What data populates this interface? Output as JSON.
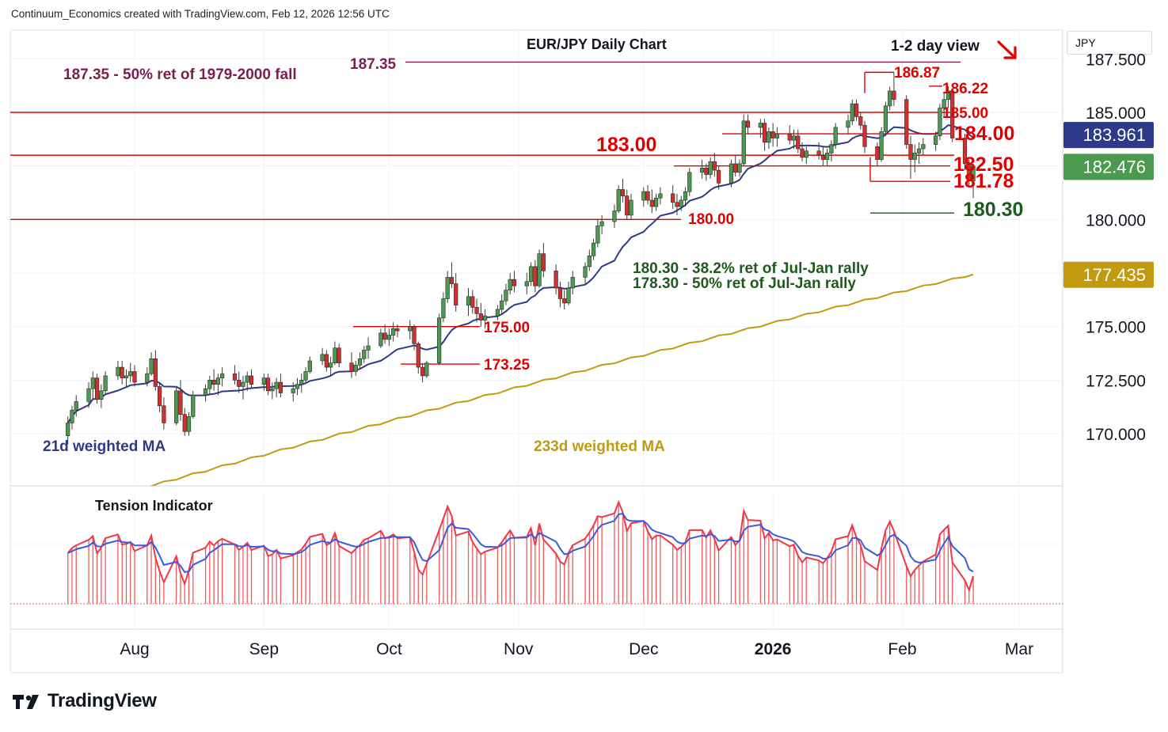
{
  "header": {
    "credit": "Continuum_Economics created with TradingView.com, Feb 12, 2026 12:56 UTC"
  },
  "branding": {
    "logo_text": "TradingView"
  },
  "currency_label": "JPY",
  "chart_data": {
    "type": "candlestick",
    "title": "EUR/JPY Daily Chart",
    "view_text": "1-2 day view",
    "view_arrow": "down-right arrow",
    "y_ticks": [
      {
        "value": 187.5,
        "label": "187.500"
      },
      {
        "value": 185.0,
        "label": "185.000"
      },
      {
        "value": 180.0,
        "label": "180.000"
      },
      {
        "value": 175.0,
        "label": "175.000"
      },
      {
        "value": 172.5,
        "label": "172.500"
      },
      {
        "value": 170.0,
        "label": "170.000"
      }
    ],
    "x_ticks": [
      {
        "date": "2025-08-01",
        "label": "Aug",
        "bold": false
      },
      {
        "date": "2025-09-01",
        "label": "Sep",
        "bold": false
      },
      {
        "date": "2025-10-01",
        "label": "Oct",
        "bold": false
      },
      {
        "date": "2025-11-01",
        "label": "Nov",
        "bold": false
      },
      {
        "date": "2025-12-01",
        "label": "Dec",
        "bold": false
      },
      {
        "date": "2026-01-01",
        "label": "2026",
        "bold": true
      },
      {
        "date": "2026-02-01",
        "label": "Feb",
        "bold": false
      },
      {
        "date": "2026-03-01",
        "label": "Mar",
        "bold": false
      }
    ],
    "price_badges": [
      {
        "value": 183.961,
        "label": "183.961",
        "color": "#2e3a87"
      },
      {
        "value": 182.476,
        "label": "182.476",
        "color": "#4c9a4f"
      },
      {
        "value": 177.435,
        "label": "177.435",
        "color": "#c29a10"
      }
    ],
    "levels": [
      {
        "value": 187.35,
        "label": "187.35",
        "note": "187.35 - 50% ret of 1979-2000 fall",
        "color": "#7a1f4e"
      },
      {
        "value": 185.0,
        "label": "185.00",
        "color": "#e00000"
      },
      {
        "value": 184.0,
        "label": "184.00",
        "color": "#e00000"
      },
      {
        "value": 183.0,
        "label": "183.00",
        "color": "#e00000"
      },
      {
        "value": 182.5,
        "label": "182.50",
        "color": "#e00000"
      },
      {
        "value": 181.78,
        "label": "181.78",
        "color": "#e00000"
      },
      {
        "value": 180.3,
        "label": "180.30",
        "color": "#1e5a1e"
      },
      {
        "value": 180.0,
        "label": "180.00",
        "color": "#e00000"
      },
      {
        "value": 175.0,
        "label": "175.00",
        "color": "#e00000"
      },
      {
        "value": 173.25,
        "label": "173.25",
        "color": "#e00000"
      },
      {
        "value": 186.87,
        "label": "186.87",
        "color": "#e00000"
      },
      {
        "value": 186.22,
        "label": "186.22",
        "color": "#e00000"
      }
    ],
    "notes": [
      "180.30 - 38.2% ret of Jul-Jan rally",
      "178.30 - 50% ret of Jul-Jan rally"
    ],
    "series": [
      {
        "name": "21d weighted MA",
        "color": "#2e3a87"
      },
      {
        "name": "233d weighted MA",
        "color": "#c29a10"
      }
    ],
    "indicator": {
      "name": "Tension Indicator"
    },
    "colors": {
      "up": "#4c9a4f",
      "down": "#d32f2f",
      "wick": "#3b3b3b"
    },
    "ohlc": [
      [
        "2025-07-16",
        169.9,
        170.8,
        169.5,
        170.5
      ],
      [
        "2025-07-17",
        170.5,
        171.3,
        170.2,
        171.1
      ],
      [
        "2025-07-18",
        171.1,
        171.8,
        170.8,
        171.5
      ],
      [
        "2025-07-21",
        171.5,
        172.4,
        171.2,
        172.1
      ],
      [
        "2025-07-22",
        172.1,
        172.9,
        171.6,
        172.6
      ],
      [
        "2025-07-23",
        172.6,
        172.8,
        171.4,
        171.6
      ],
      [
        "2025-07-24",
        171.6,
        172.3,
        171.2,
        172.0
      ],
      [
        "2025-07-25",
        172.0,
        172.9,
        171.8,
        172.7
      ],
      [
        "2025-07-28",
        172.7,
        173.4,
        172.5,
        173.1
      ],
      [
        "2025-07-29",
        173.1,
        173.4,
        172.3,
        172.6
      ],
      [
        "2025-07-30",
        172.6,
        173.0,
        172.2,
        172.7
      ],
      [
        "2025-07-31",
        172.7,
        173.3,
        172.4,
        172.9
      ],
      [
        "2025-08-01",
        172.9,
        173.2,
        172.2,
        172.4
      ],
      [
        "2025-08-04",
        172.4,
        173.1,
        172.2,
        172.8
      ],
      [
        "2025-08-05",
        172.8,
        173.8,
        172.7,
        173.5
      ],
      [
        "2025-08-06",
        173.5,
        173.9,
        172.0,
        172.2
      ],
      [
        "2025-08-07",
        172.2,
        172.4,
        171.0,
        171.3
      ],
      [
        "2025-08-08",
        171.3,
        171.7,
        170.2,
        170.5
      ],
      [
        "2025-08-11",
        170.5,
        172.2,
        170.4,
        172.0
      ],
      [
        "2025-08-12",
        172.0,
        172.5,
        170.6,
        170.9
      ],
      [
        "2025-08-13",
        170.9,
        171.2,
        169.9,
        170.1
      ],
      [
        "2025-08-14",
        170.1,
        171.0,
        169.9,
        170.8
      ],
      [
        "2025-08-15",
        170.8,
        172.0,
        170.7,
        171.8
      ],
      [
        "2025-08-18",
        171.8,
        172.3,
        171.5,
        172.1
      ],
      [
        "2025-08-19",
        172.1,
        172.7,
        171.8,
        172.5
      ],
      [
        "2025-08-20",
        172.5,
        173.0,
        172.0,
        172.3
      ],
      [
        "2025-08-21",
        172.3,
        172.8,
        171.8,
        172.6
      ],
      [
        "2025-08-22",
        172.6,
        173.1,
        172.2,
        172.8
      ],
      [
        "2025-08-25",
        172.8,
        173.2,
        172.3,
        172.5
      ],
      [
        "2025-08-26",
        172.5,
        172.9,
        171.9,
        172.2
      ],
      [
        "2025-08-27",
        172.2,
        172.7,
        171.6,
        172.4
      ],
      [
        "2025-08-28",
        172.4,
        172.9,
        172.0,
        172.7
      ],
      [
        "2025-08-29",
        172.7,
        173.0,
        172.1,
        172.3
      ],
      [
        "2025-09-01",
        172.3,
        172.8,
        172.0,
        172.6
      ],
      [
        "2025-09-02",
        172.6,
        172.8,
        171.8,
        172.0
      ],
      [
        "2025-09-03",
        172.0,
        172.4,
        171.6,
        172.1
      ],
      [
        "2025-09-04",
        172.1,
        172.6,
        171.7,
        172.4
      ],
      [
        "2025-09-05",
        172.4,
        172.8,
        171.7,
        171.9
      ],
      [
        "2025-09-08",
        171.9,
        172.4,
        171.5,
        172.1
      ],
      [
        "2025-09-09",
        172.1,
        172.6,
        171.8,
        172.3
      ],
      [
        "2025-09-10",
        172.3,
        172.8,
        171.9,
        172.5
      ],
      [
        "2025-09-11",
        172.5,
        173.1,
        172.4,
        172.9
      ],
      [
        "2025-09-12",
        172.9,
        173.6,
        172.8,
        173.4
      ],
      [
        "2025-09-15",
        173.4,
        174.0,
        173.2,
        173.7
      ],
      [
        "2025-09-16",
        173.7,
        173.9,
        172.9,
        173.1
      ],
      [
        "2025-09-17",
        173.1,
        173.6,
        172.7,
        173.3
      ],
      [
        "2025-09-18",
        173.3,
        174.3,
        173.2,
        174.0
      ],
      [
        "2025-09-19",
        174.0,
        174.2,
        173.1,
        173.3
      ],
      [
        "2025-09-22",
        173.3,
        173.8,
        172.6,
        172.9
      ],
      [
        "2025-09-23",
        172.9,
        173.4,
        172.7,
        173.2
      ],
      [
        "2025-09-24",
        173.2,
        173.8,
        173.0,
        173.5
      ],
      [
        "2025-09-25",
        173.5,
        174.1,
        173.3,
        173.9
      ],
      [
        "2025-09-26",
        173.9,
        174.5,
        173.5,
        174.1
      ],
      [
        "2025-09-29",
        174.1,
        174.9,
        174.0,
        174.7
      ],
      [
        "2025-09-30",
        174.7,
        175.1,
        174.2,
        174.4
      ],
      [
        "2025-10-01",
        174.4,
        174.9,
        174.1,
        174.6
      ],
      [
        "2025-10-02",
        174.6,
        175.2,
        174.3,
        174.9
      ],
      [
        "2025-10-03",
        174.9,
        175.1,
        174.5,
        174.8
      ],
      [
        "2025-10-06",
        174.8,
        175.3,
        174.4,
        175.0
      ],
      [
        "2025-10-07",
        175.0,
        175.1,
        173.9,
        174.2
      ],
      [
        "2025-10-08",
        174.2,
        174.3,
        172.8,
        173.1
      ],
      [
        "2025-10-09",
        173.1,
        173.3,
        172.4,
        172.7
      ],
      [
        "2025-10-10",
        172.7,
        173.4,
        172.6,
        173.3
      ],
      [
        "2025-10-13",
        173.3,
        175.6,
        173.2,
        175.4
      ],
      [
        "2025-10-14",
        175.4,
        176.6,
        175.2,
        176.3
      ],
      [
        "2025-10-15",
        176.3,
        177.6,
        176.1,
        177.3
      ],
      [
        "2025-10-16",
        177.3,
        178.0,
        176.8,
        177.0
      ],
      [
        "2025-10-17",
        177.0,
        177.5,
        175.7,
        176.0
      ],
      [
        "2025-10-20",
        176.0,
        176.8,
        175.5,
        176.4
      ],
      [
        "2025-10-21",
        176.4,
        176.7,
        175.6,
        175.9
      ],
      [
        "2025-10-22",
        175.9,
        176.3,
        175.2,
        175.6
      ],
      [
        "2025-10-23",
        175.6,
        176.1,
        175.0,
        175.3
      ],
      [
        "2025-10-24",
        175.3,
        175.8,
        174.9,
        175.5
      ],
      [
        "2025-10-27",
        175.5,
        176.0,
        175.3,
        175.8
      ],
      [
        "2025-10-28",
        175.8,
        176.5,
        175.6,
        176.2
      ],
      [
        "2025-10-29",
        176.2,
        177.0,
        176.0,
        176.7
      ],
      [
        "2025-10-30",
        176.7,
        177.5,
        176.5,
        177.2
      ],
      [
        "2025-10-31",
        177.2,
        177.6,
        176.6,
        176.9
      ],
      [
        "2025-11-03",
        176.9,
        177.5,
        176.5,
        177.1
      ],
      [
        "2025-11-04",
        177.1,
        178.0,
        176.9,
        177.8
      ],
      [
        "2025-11-05",
        177.8,
        178.1,
        176.6,
        176.9
      ],
      [
        "2025-11-06",
        176.9,
        178.6,
        176.8,
        178.4
      ],
      [
        "2025-11-07",
        178.4,
        178.9,
        177.3,
        177.6
      ],
      [
        "2025-11-10",
        177.6,
        177.9,
        176.5,
        176.8
      ],
      [
        "2025-11-11",
        176.8,
        177.1,
        175.9,
        176.3
      ],
      [
        "2025-11-12",
        176.3,
        176.7,
        175.8,
        176.1
      ],
      [
        "2025-11-13",
        176.1,
        177.1,
        176.0,
        176.8
      ],
      [
        "2025-11-14",
        176.8,
        177.6,
        176.5,
        177.3
      ],
      [
        "2025-11-17",
        177.3,
        178.0,
        177.0,
        177.8
      ],
      [
        "2025-11-18",
        177.8,
        178.6,
        177.6,
        178.3
      ],
      [
        "2025-11-19",
        178.3,
        179.1,
        178.1,
        178.9
      ],
      [
        "2025-11-20",
        178.9,
        180.0,
        178.7,
        179.7
      ],
      [
        "2025-11-21",
        179.7,
        180.2,
        179.3,
        179.9
      ],
      [
        "2025-11-24",
        179.9,
        180.7,
        179.6,
        180.4
      ],
      [
        "2025-11-25",
        180.4,
        181.6,
        180.3,
        181.4
      ],
      [
        "2025-11-26",
        181.4,
        181.9,
        180.8,
        181.1
      ],
      [
        "2025-11-27",
        181.1,
        181.4,
        180.0,
        180.2
      ],
      [
        "2025-11-28",
        180.2,
        181.2,
        180.0,
        180.9
      ],
      [
        "2025-12-01",
        180.9,
        181.5,
        180.6,
        181.3
      ],
      [
        "2025-12-02",
        181.3,
        181.6,
        180.7,
        180.9
      ],
      [
        "2025-12-03",
        180.9,
        181.4,
        180.3,
        180.6
      ],
      [
        "2025-12-04",
        180.6,
        181.2,
        180.4,
        181.0
      ],
      [
        "2025-12-05",
        181.0,
        181.5,
        180.7,
        181.2
      ],
      [
        "2025-12-08",
        181.2,
        181.6,
        180.5,
        180.8
      ],
      [
        "2025-12-09",
        180.8,
        181.2,
        180.2,
        180.6
      ],
      [
        "2025-12-10",
        180.6,
        181.1,
        180.4,
        180.9
      ],
      [
        "2025-12-11",
        180.9,
        181.5,
        180.6,
        181.3
      ],
      [
        "2025-12-12",
        181.3,
        182.4,
        181.1,
        182.2
      ],
      [
        "2025-12-15",
        182.2,
        182.8,
        181.9,
        182.4
      ],
      [
        "2025-12-16",
        182.4,
        182.6,
        181.8,
        182.1
      ],
      [
        "2025-12-17",
        182.1,
        182.9,
        181.9,
        182.7
      ],
      [
        "2025-12-18",
        182.7,
        183.1,
        182.0,
        182.3
      ],
      [
        "2025-12-19",
        182.3,
        182.5,
        181.4,
        181.7
      ],
      [
        "2025-12-22",
        181.7,
        182.8,
        181.5,
        182.6
      ],
      [
        "2025-12-23",
        182.6,
        183.0,
        182.0,
        182.2
      ],
      [
        "2025-12-24",
        182.2,
        182.8,
        182.0,
        182.6
      ],
      [
        "2025-12-25",
        182.6,
        184.9,
        182.5,
        184.6
      ],
      [
        "2025-12-26",
        184.6,
        184.9,
        184.0,
        184.3
      ],
      [
        "2025-12-29",
        184.3,
        184.7,
        183.8,
        184.5
      ],
      [
        "2025-12-30",
        184.5,
        184.7,
        183.2,
        183.6
      ],
      [
        "2025-12-31",
        183.6,
        184.3,
        183.3,
        184.1
      ],
      [
        "2026-01-01",
        184.1,
        184.5,
        183.4,
        183.8
      ],
      [
        "2026-01-02",
        183.8,
        184.3,
        183.4,
        184.0
      ],
      [
        "2026-01-05",
        184.0,
        184.4,
        183.5,
        183.7
      ],
      [
        "2026-01-06",
        183.7,
        184.2,
        183.3,
        183.9
      ],
      [
        "2026-01-07",
        183.9,
        184.2,
        183.1,
        183.3
      ],
      [
        "2026-01-08",
        183.3,
        183.6,
        182.7,
        182.9
      ],
      [
        "2026-01-09",
        182.9,
        183.4,
        182.6,
        183.2
      ],
      [
        "2026-01-12",
        183.2,
        183.6,
        182.8,
        183.0
      ],
      [
        "2026-01-13",
        183.0,
        183.4,
        182.5,
        182.8
      ],
      [
        "2026-01-14",
        182.8,
        183.3,
        182.5,
        183.1
      ],
      [
        "2026-01-15",
        183.1,
        183.7,
        182.7,
        183.5
      ],
      [
        "2026-01-16",
        183.5,
        184.5,
        183.3,
        184.3
      ],
      [
        "2026-01-19",
        184.3,
        184.9,
        184.0,
        184.6
      ],
      [
        "2026-01-20",
        184.6,
        185.6,
        184.4,
        185.4
      ],
      [
        "2026-01-21",
        185.4,
        185.6,
        184.6,
        184.8
      ],
      [
        "2026-01-22",
        184.8,
        185.0,
        184.2,
        184.4
      ],
      [
        "2026-01-23",
        184.4,
        184.6,
        183.1,
        183.4
      ],
      [
        "2026-01-26",
        183.4,
        183.6,
        182.5,
        182.8
      ],
      [
        "2026-01-27",
        182.8,
        184.3,
        182.7,
        184.1
      ],
      [
        "2026-01-28",
        184.1,
        185.5,
        183.9,
        185.3
      ],
      [
        "2026-01-29",
        185.3,
        186.2,
        185.1,
        186.0
      ],
      [
        "2026-01-30",
        186.0,
        186.87,
        185.3,
        185.6
      ],
      [
        "2026-02-02",
        185.6,
        185.8,
        183.3,
        183.5
      ],
      [
        "2026-02-03",
        183.5,
        183.9,
        181.9,
        182.8
      ],
      [
        "2026-02-04",
        182.8,
        183.5,
        182.2,
        183.1
      ],
      [
        "2026-02-05",
        183.1,
        183.6,
        182.6,
        183.3
      ],
      [
        "2026-02-06",
        183.3,
        183.8,
        183.0,
        183.5
      ],
      [
        "2026-02-09",
        183.5,
        184.1,
        183.2,
        183.9
      ],
      [
        "2026-02-10",
        183.9,
        185.4,
        183.7,
        185.2
      ],
      [
        "2026-02-11",
        185.2,
        185.9,
        184.8,
        185.6
      ],
      [
        "2026-02-12",
        185.6,
        186.22,
        185.2,
        186.0
      ],
      [
        "2026-02-13",
        186.0,
        186.1,
        183.6,
        183.8
      ],
      [
        "2026-02-16",
        183.8,
        184.0,
        182.3,
        182.6
      ],
      [
        "2026-02-17",
        182.6,
        182.8,
        181.5,
        181.8
      ],
      [
        "2026-02-18",
        181.8,
        182.6,
        181.0,
        182.476
      ]
    ]
  }
}
